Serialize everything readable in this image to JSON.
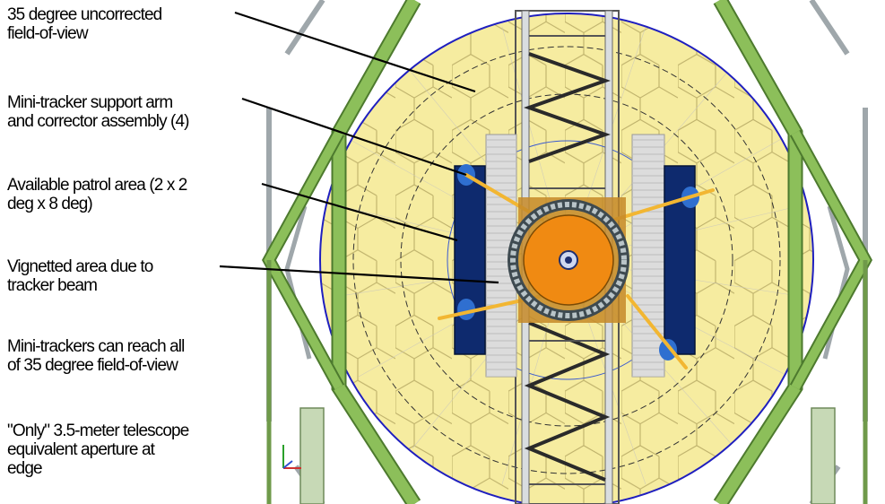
{
  "callouts": [
    {
      "lines": [
        "35 degree uncorrected",
        "field-of-view"
      ]
    },
    {
      "lines": [
        "Mini-tracker support arm",
        "and corrector assembly (4)"
      ]
    },
    {
      "lines": [
        "Available patrol area (2 x 2",
        "deg x 8 deg)"
      ]
    },
    {
      "lines": [
        "Vignetted area due to",
        "tracker beam"
      ]
    },
    {
      "lines": [
        "Mini-trackers can reach all",
        "of 35 degree field-of-view"
      ]
    },
    {
      "lines": [
        "\"Only\" 3.5-meter telescope",
        "equivalent aperture at",
        "edge"
      ]
    }
  ],
  "colors": {
    "truss": "#8cbf5a",
    "truss_edge": "#4d7a2e",
    "mirror_fill": "#f6eca0",
    "mirror_edge": "#b9ad6b",
    "fov_circle": "#1f1fbf",
    "patrol_area": "#0e2a6e",
    "vignette": "#dcdcdc",
    "arm": "#f2b632",
    "corrector": "#f08a12",
    "steel": "#aab4b8"
  },
  "icons": [
    "axis-triad-icon"
  ]
}
